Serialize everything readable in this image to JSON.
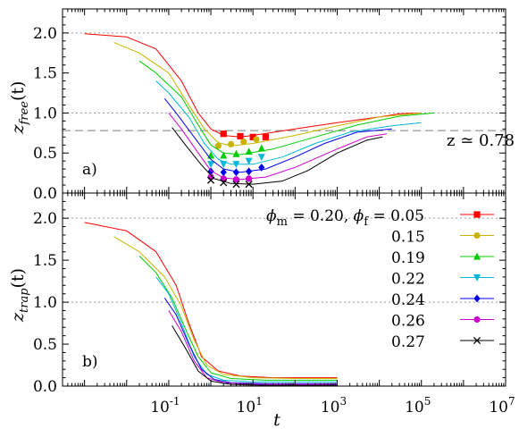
{
  "chart_data": [
    {
      "panel_label": "a)",
      "type": "line",
      "ylabel": "z_free(t)",
      "ylabel_main": "z",
      "ylabel_sub": "free",
      "ylabel_arg": "(t)",
      "xscale": "log",
      "xlim": [
        0.0003,
        10000000
      ],
      "ylim": [
        0,
        2.3
      ],
      "y_ticks": [
        "0.0",
        "0.5",
        "1.0",
        "1.5",
        "2.0"
      ],
      "y_tick_values": [
        0,
        0.5,
        1.0,
        1.5,
        2.0
      ],
      "reference_lines": [
        {
          "y": 2.0,
          "style": "dotted"
        },
        {
          "y": 1.0,
          "style": "dotted"
        },
        {
          "y": 0.78,
          "style": "dashed"
        }
      ],
      "annotation": "z ≃ 0.78",
      "series": [
        {
          "phi_f": "0.05",
          "color": "#ff0000",
          "marker": "square",
          "x": [
            0.001,
            0.01,
            0.05,
            0.2,
            0.5,
            1,
            2,
            5,
            10,
            100,
            1000,
            10000,
            30000,
            100000
          ],
          "y": [
            1.99,
            1.95,
            1.8,
            1.4,
            1.0,
            0.8,
            0.72,
            0.7,
            0.72,
            0.8,
            0.88,
            0.95,
            0.99,
            1.0
          ],
          "marker_x": [
            2,
            5,
            10,
            20
          ],
          "marker_y": [
            0.74,
            0.71,
            0.7,
            0.7
          ]
        },
        {
          "phi_f": "0.15",
          "color": "#c8b400",
          "marker": "circle",
          "x": [
            0.005,
            0.02,
            0.1,
            0.3,
            0.7,
            1.5,
            3,
            10,
            100,
            1000,
            10000,
            100000
          ],
          "y": [
            1.88,
            1.75,
            1.5,
            1.1,
            0.8,
            0.63,
            0.59,
            0.62,
            0.72,
            0.84,
            0.95,
            1.0
          ],
          "marker_x": [
            1.5,
            3,
            6,
            12
          ],
          "marker_y": [
            0.59,
            0.61,
            0.64,
            0.67
          ]
        },
        {
          "phi_f": "0.19",
          "color": "#00cc00",
          "marker": "triangle-up",
          "x": [
            0.02,
            0.05,
            0.2,
            0.5,
            1,
            2,
            5,
            30,
            300,
            3000,
            30000,
            200000
          ],
          "y": [
            1.65,
            1.5,
            1.2,
            0.85,
            0.6,
            0.5,
            0.48,
            0.55,
            0.7,
            0.85,
            0.96,
            1.0
          ],
          "marker_x": [
            1,
            2,
            4,
            8,
            16
          ],
          "marker_y": [
            0.47,
            0.47,
            0.49,
            0.52,
            0.56
          ]
        },
        {
          "phi_f": "0.22",
          "color": "#00b8d8",
          "marker": "triangle-down",
          "x": [
            0.05,
            0.1,
            0.3,
            0.7,
            1.5,
            3,
            10,
            50,
            300,
            2000,
            20000,
            100000
          ],
          "y": [
            1.4,
            1.25,
            0.95,
            0.62,
            0.42,
            0.36,
            0.36,
            0.45,
            0.62,
            0.76,
            0.84,
            0.88
          ],
          "marker_x": [
            1,
            2,
            4,
            8,
            16
          ],
          "marker_y": [
            0.36,
            0.36,
            0.36,
            0.4,
            0.45
          ]
        },
        {
          "phi_f": "0.24",
          "color": "#0000ee",
          "marker": "diamond",
          "x": [
            0.08,
            0.15,
            0.4,
            1,
            2,
            5,
            20,
            100,
            500,
            3000,
            20000
          ],
          "y": [
            1.18,
            1.0,
            0.7,
            0.42,
            0.3,
            0.26,
            0.3,
            0.45,
            0.62,
            0.76,
            0.8
          ],
          "marker_x": [
            1,
            2,
            4,
            8,
            16
          ],
          "marker_y": [
            0.27,
            0.26,
            0.26,
            0.27,
            0.32
          ]
        },
        {
          "phi_f": "0.26",
          "color": "#cc00cc",
          "marker": "circle",
          "x": [
            0.1,
            0.2,
            0.5,
            1,
            2,
            5,
            20,
            100,
            1000,
            5000,
            15000
          ],
          "y": [
            1.0,
            0.8,
            0.5,
            0.28,
            0.19,
            0.17,
            0.2,
            0.32,
            0.55,
            0.7,
            0.74
          ],
          "marker_x": [
            1,
            2,
            4,
            8
          ],
          "marker_y": [
            0.2,
            0.18,
            0.17,
            0.18
          ]
        },
        {
          "phi_f": "0.27",
          "color": "#000000",
          "marker": "cross",
          "x": [
            0.12,
            0.25,
            0.6,
            1.2,
            3,
            10,
            50,
            200,
            1000,
            5000,
            12000
          ],
          "y": [
            0.82,
            0.6,
            0.35,
            0.18,
            0.12,
            0.11,
            0.15,
            0.28,
            0.5,
            0.66,
            0.7
          ],
          "marker_x": [
            1,
            2,
            4,
            8
          ],
          "marker_y": [
            0.16,
            0.13,
            0.11,
            0.11
          ]
        }
      ]
    },
    {
      "panel_label": "b)",
      "type": "line",
      "ylabel": "z_trap(t)",
      "ylabel_main": "z",
      "ylabel_sub": "trap",
      "ylabel_arg": "(t)",
      "xlabel": "t",
      "xscale": "log",
      "xlim": [
        0.0003,
        10000000
      ],
      "ylim": [
        0,
        2.3
      ],
      "x_ticks": [
        "10",
        "10",
        "10",
        "10",
        "10"
      ],
      "x_tick_exponents": [
        "-1",
        "1",
        "3",
        "5",
        "7"
      ],
      "x_tick_values": [
        0.1,
        10,
        1000,
        100000,
        10000000
      ],
      "y_ticks": [
        "0.0",
        "0.5",
        "1.0",
        "1.5",
        "2.0"
      ],
      "y_tick_values": [
        0,
        0.5,
        1.0,
        1.5,
        2.0
      ],
      "reference_lines": [
        {
          "y": 2.0,
          "style": "dotted"
        },
        {
          "y": 1.0,
          "style": "dotted"
        }
      ],
      "legend": {
        "header": "ϕm = 0.20, ϕf = 0.05",
        "header_parts": [
          "ϕ",
          "m",
          " = 0.20, ",
          "ϕ",
          "f",
          " = 0.05"
        ],
        "entries": [
          "0.15",
          "0.19",
          "0.22",
          "0.24",
          "0.26",
          "0.27"
        ],
        "placement": "right"
      },
      "series": [
        {
          "phi_f": "0.05",
          "color": "#ff0000",
          "x": [
            0.001,
            0.01,
            0.05,
            0.15,
            0.3,
            0.6,
            1.5,
            5,
            30,
            1000
          ],
          "y": [
            1.95,
            1.85,
            1.6,
            1.2,
            0.75,
            0.35,
            0.18,
            0.12,
            0.1,
            0.1
          ]
        },
        {
          "phi_f": "0.15",
          "color": "#c8b400",
          "x": [
            0.005,
            0.02,
            0.08,
            0.2,
            0.4,
            0.8,
            2,
            10,
            100,
            1000
          ],
          "y": [
            1.78,
            1.6,
            1.3,
            0.95,
            0.55,
            0.25,
            0.14,
            0.1,
            0.09,
            0.09
          ]
        },
        {
          "phi_f": "0.19",
          "color": "#00cc00",
          "x": [
            0.02,
            0.05,
            0.12,
            0.25,
            0.5,
            1,
            3,
            20,
            300,
            1000
          ],
          "y": [
            1.55,
            1.35,
            1.05,
            0.68,
            0.35,
            0.16,
            0.09,
            0.07,
            0.07,
            0.07
          ]
        },
        {
          "phi_f": "0.22",
          "color": "#00b8d8",
          "x": [
            0.05,
            0.1,
            0.2,
            0.4,
            0.8,
            2,
            10,
            100,
            1000
          ],
          "y": [
            1.3,
            1.1,
            0.75,
            0.35,
            0.14,
            0.07,
            0.05,
            0.05,
            0.05
          ]
        },
        {
          "phi_f": "0.24",
          "color": "#0000ee",
          "x": [
            0.08,
            0.15,
            0.3,
            0.6,
            1.2,
            3,
            20,
            200,
            1000
          ],
          "y": [
            1.05,
            0.85,
            0.5,
            0.2,
            0.08,
            0.04,
            0.03,
            0.03,
            0.03
          ]
        },
        {
          "phi_f": "0.26",
          "color": "#cc00cc",
          "x": [
            0.1,
            0.2,
            0.4,
            0.8,
            2,
            10,
            100,
            1000
          ],
          "y": [
            0.9,
            0.65,
            0.3,
            0.1,
            0.04,
            0.02,
            0.02,
            0.02
          ]
        },
        {
          "phi_f": "0.27",
          "color": "#000000",
          "x": [
            0.12,
            0.25,
            0.5,
            1,
            3,
            20,
            300,
            1000
          ],
          "y": [
            0.72,
            0.45,
            0.18,
            0.06,
            0.02,
            0.01,
            0.01,
            0.01
          ]
        }
      ]
    }
  ]
}
